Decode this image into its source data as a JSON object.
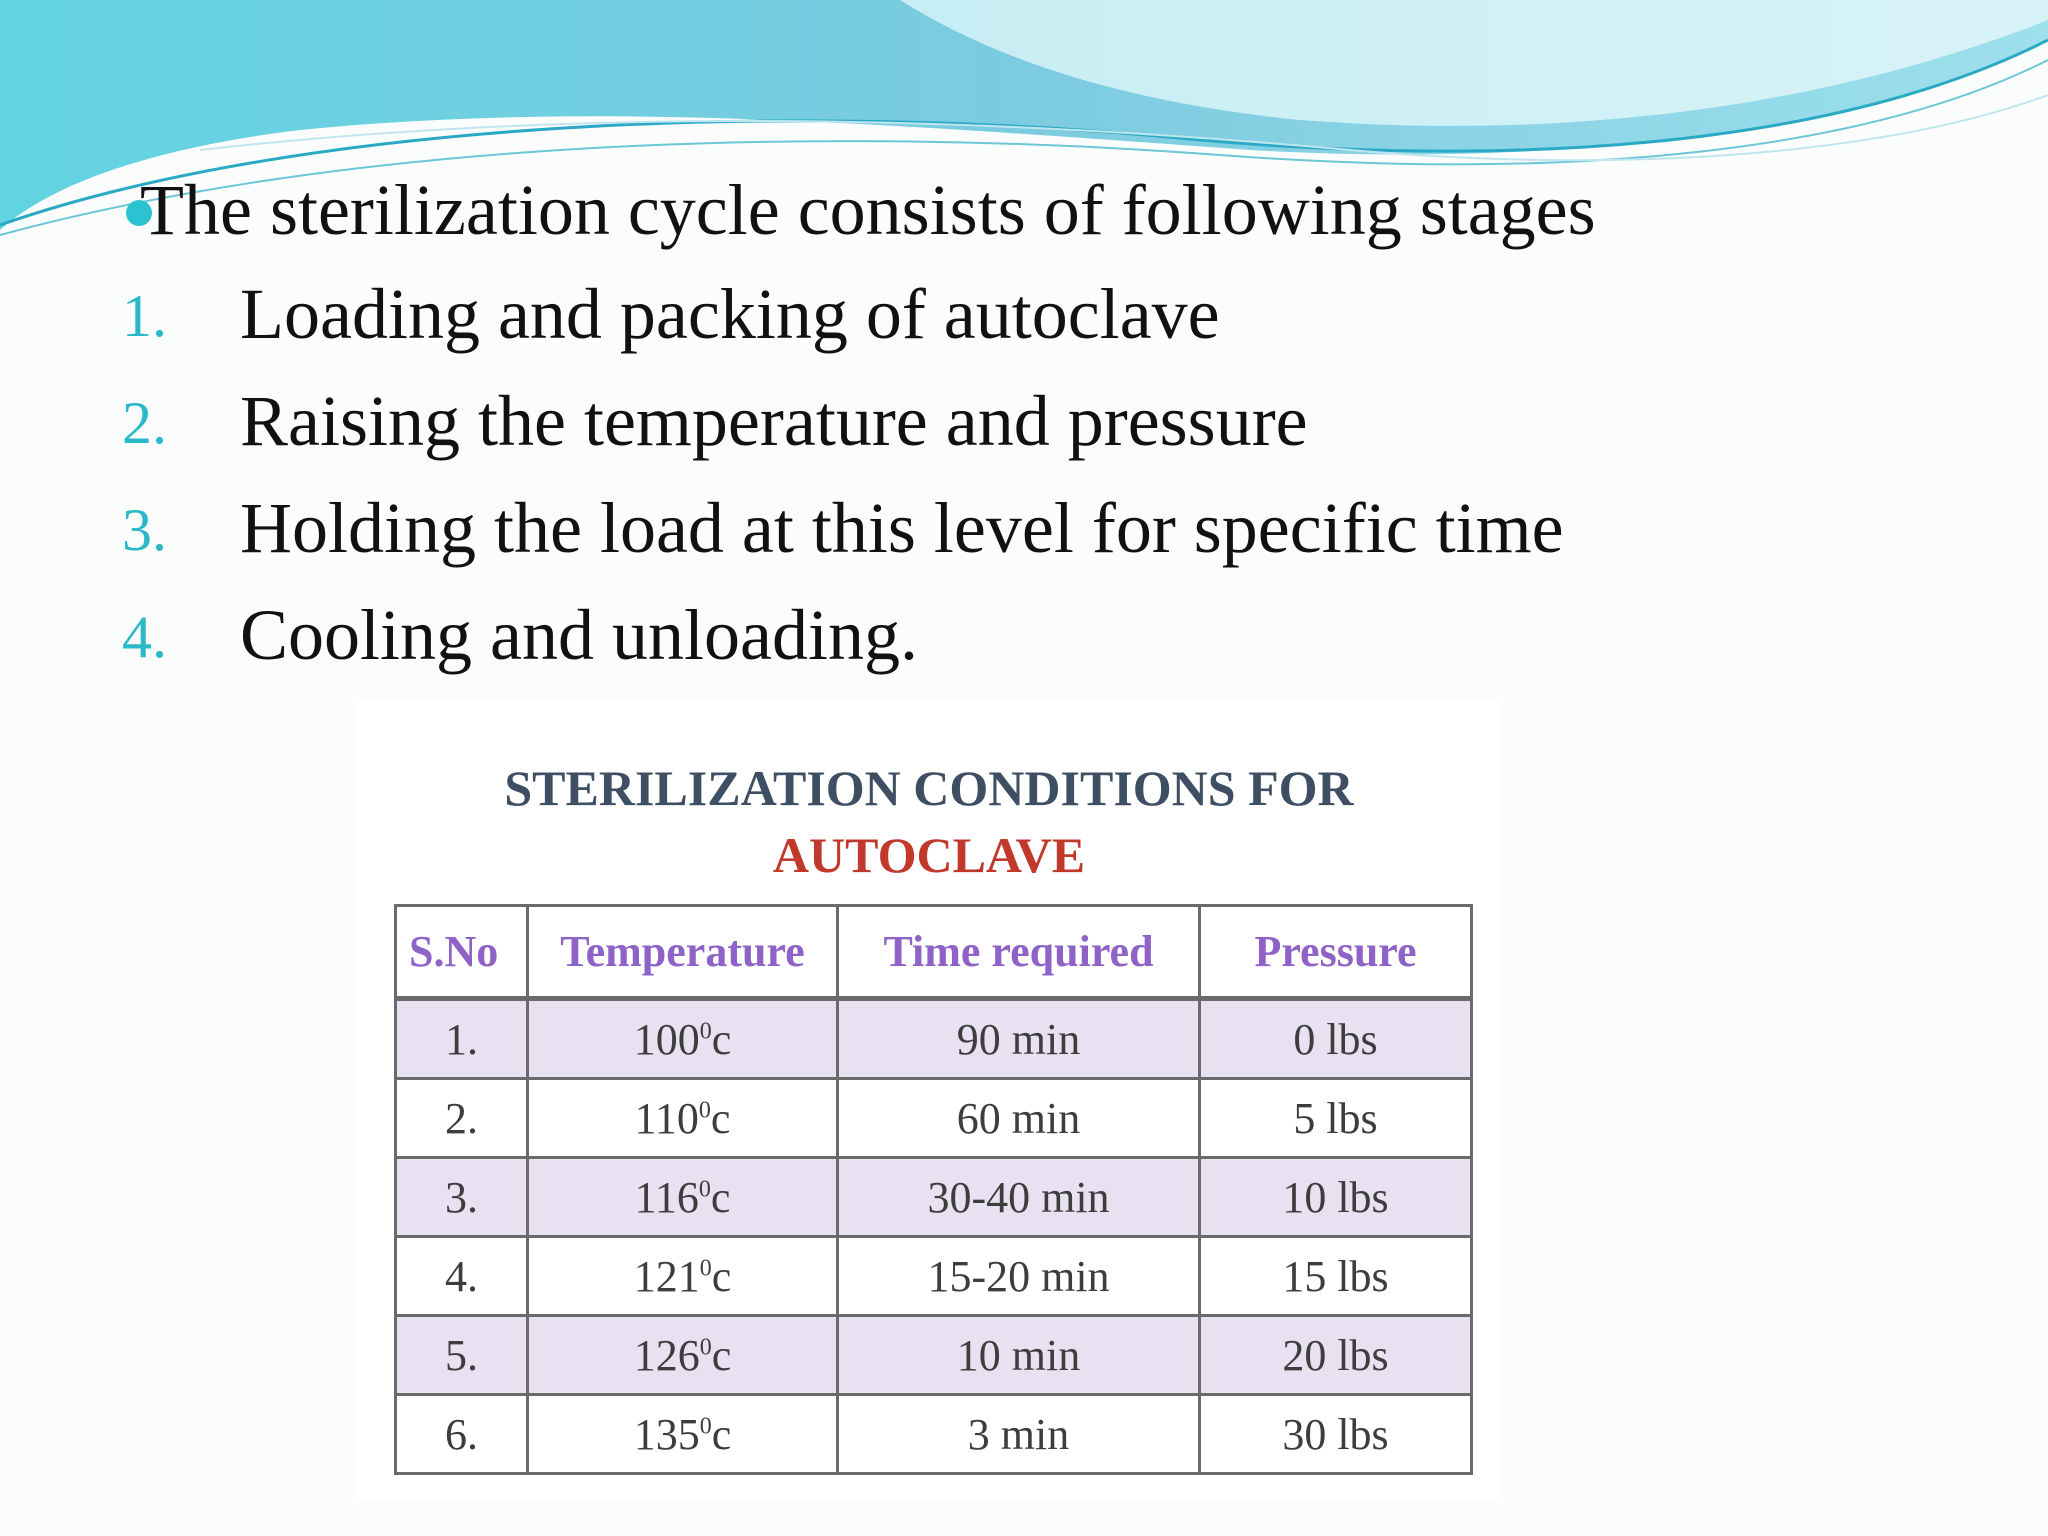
{
  "intro": "The sterilization cycle consists of following stages",
  "steps": [
    {
      "num": "1.",
      "text": "Loading and packing of autoclave"
    },
    {
      "num": "2.",
      "text": "Raising the temperature and pressure"
    },
    {
      "num": "3.",
      "text": "Holding the load at this level for specific time"
    },
    {
      "num": "4.",
      "text": "Cooling and unloading."
    }
  ],
  "table": {
    "title_line1": "STERILIZATION CONDITIONS FOR",
    "title_line2": "AUTOCLAVE",
    "headers": [
      "S.No",
      "Temperature",
      "Time required",
      "Pressure"
    ],
    "rows": [
      {
        "sno": "1.",
        "temp": "100",
        "time": "90 min",
        "pressure": "0 lbs"
      },
      {
        "sno": "2.",
        "temp": "110",
        "time": "60 min",
        "pressure": "5 lbs"
      },
      {
        "sno": "3.",
        "temp": "116",
        "time": "30-40 min",
        "pressure": "10 lbs"
      },
      {
        "sno": "4.",
        "temp": "121",
        "time": "15-20 min",
        "pressure": "15 lbs"
      },
      {
        "sno": "5.",
        "temp": "126",
        "time": "10 min",
        "pressure": "20 lbs"
      },
      {
        "sno": "6.",
        "temp": "135",
        "time": "3 min",
        "pressure": "30 lbs"
      }
    ],
    "temp_sup": "0",
    "temp_unit": "c"
  },
  "colors": {
    "accent": "#2bc3d2",
    "title_dark": "#3f4f63",
    "title_red": "#c0392b",
    "header_purple": "#8e62c6",
    "row_shade": "#e8e1f1"
  }
}
